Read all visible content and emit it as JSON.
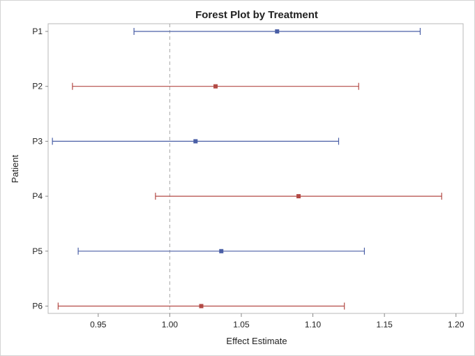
{
  "chart_data": {
    "type": "forest",
    "title": "Forest Plot by Treatment",
    "xlabel": "Effect Estimate",
    "ylabel": "Patient",
    "xlim": [
      0.915,
      1.205
    ],
    "xticks": [
      "0.95",
      "1.00",
      "1.05",
      "1.10",
      "1.15",
      "1.20"
    ],
    "xtick_values": [
      0.95,
      1.0,
      1.05,
      1.1,
      1.15,
      1.2
    ],
    "reference_line": 1.0,
    "grid": false,
    "rows": [
      {
        "label": "P1",
        "estimate": 1.075,
        "lower": 0.975,
        "upper": 1.175,
        "color": "#4a5fa6"
      },
      {
        "label": "P2",
        "estimate": 1.032,
        "lower": 0.932,
        "upper": 1.132,
        "color": "#b34a45"
      },
      {
        "label": "P3",
        "estimate": 1.018,
        "lower": 0.918,
        "upper": 1.118,
        "color": "#4a5fa6"
      },
      {
        "label": "P4",
        "estimate": 1.09,
        "lower": 0.99,
        "upper": 1.19,
        "color": "#b34a45"
      },
      {
        "label": "P5",
        "estimate": 1.036,
        "lower": 0.936,
        "upper": 1.136,
        "color": "#4a5fa6"
      },
      {
        "label": "P6",
        "estimate": 1.022,
        "lower": 0.922,
        "upper": 1.122,
        "color": "#b34a45"
      }
    ]
  },
  "colors": {
    "frame": "#b8b8b8",
    "reference_line": "#a8a8a8",
    "axis": "#888888"
  }
}
